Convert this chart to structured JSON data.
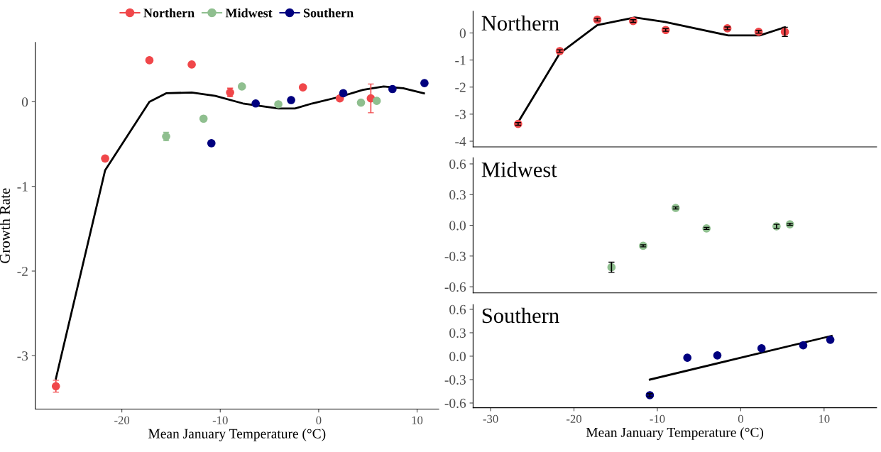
{
  "chart_data": [
    {
      "type": "scatter",
      "xlabel": "Mean January Temperature (°C)",
      "ylabel": "Growth Rate",
      "xlim": [
        -28.8,
        12.2
      ],
      "ylim": [
        -3.63,
        0.7
      ],
      "xticks": [
        -20,
        -10,
        0,
        10
      ],
      "yticks": [
        -3,
        -2,
        -1,
        0
      ],
      "legend": "top",
      "grid": false,
      "marker": "circle",
      "series": [
        {
          "name": "Northern",
          "color": "#f0474a",
          "x": [
            -26.7,
            -21.7,
            -17.2,
            -12.9,
            -9.0,
            -1.6,
            2.15,
            5.3
          ],
          "values": [
            -3.36,
            -0.67,
            0.49,
            0.44,
            0.11,
            0.17,
            0.04,
            0.04
          ],
          "errors": [
            0.07,
            0.03,
            null,
            null,
            0.05,
            null,
            null,
            0.17
          ]
        },
        {
          "name": "Midwest",
          "color": "#8fbf8f",
          "x": [
            -15.5,
            -11.7,
            -7.8,
            -4.1,
            4.3,
            5.9
          ],
          "values": [
            -0.41,
            -0.2,
            0.18,
            -0.03,
            -0.01,
            0.01
          ],
          "errors": [
            0.05,
            null,
            null,
            null,
            null,
            null
          ]
        },
        {
          "name": "Southern",
          "color": "#00007f",
          "x": [
            -10.9,
            -6.4,
            -2.8,
            2.5,
            7.5,
            10.75
          ],
          "values": [
            -0.49,
            -0.02,
            0.02,
            0.1,
            0.15,
            0.22
          ],
          "errors": [
            0.03,
            null,
            null,
            0.03,
            null,
            null
          ]
        },
        {
          "type": "line",
          "marker": "none",
          "color": "#000000",
          "x": [
            -26.7,
            -21.7,
            -17.2,
            -15.5,
            -12.9,
            -10.5,
            -7.7,
            -4.1,
            -2.4,
            -0.65,
            2.2,
            4.5,
            6.6,
            8.6,
            10.7
          ],
          "values": [
            -3.27,
            -0.81,
            0.0,
            0.1,
            0.11,
            0.07,
            -0.02,
            -0.08,
            -0.08,
            -0.02,
            0.06,
            0.14,
            0.18,
            0.16,
            0.1
          ]
        }
      ]
    },
    {
      "type": "scatter",
      "title": "Northern",
      "xlim": [
        -32.1,
        16.3
      ],
      "ylim": [
        -4.21,
        0.8
      ],
      "yticks": [
        -4,
        -3,
        -2,
        -1,
        0
      ],
      "tick_labels": "y",
      "grid": false,
      "marker": "circle",
      "series": [
        {
          "color": "#f0474a",
          "x": [
            -26.7,
            -21.7,
            -17.2,
            -12.9,
            -9.0,
            -1.6,
            2.15,
            5.3
          ],
          "values": [
            -3.36,
            -0.67,
            0.49,
            0.44,
            0.11,
            0.17,
            0.04,
            0.04
          ],
          "errors": [
            0.05,
            0.05,
            0.05,
            0.05,
            0.05,
            0.05,
            0.05,
            0.17
          ]
        },
        {
          "type": "line",
          "marker": "none",
          "color": "#000000",
          "x": [
            -26.7,
            -21.7,
            -17.2,
            -12.7,
            -9.1,
            -1.5,
            2.3,
            5.3
          ],
          "values": [
            -3.3,
            -0.75,
            0.29,
            0.57,
            0.41,
            -0.09,
            -0.09,
            0.21
          ]
        }
      ]
    },
    {
      "type": "scatter",
      "title": "Midwest",
      "xlim": [
        -32.1,
        16.3
      ],
      "ylim": [
        -0.66,
        0.66
      ],
      "yticks": [
        {
          "value": -0.6,
          "label": "-0.6"
        },
        {
          "value": -0.3,
          "label": "-0.3"
        },
        {
          "value": 0,
          "label": "0.0"
        },
        {
          "value": 0.3,
          "label": "0.3"
        },
        {
          "value": 0.6,
          "label": "0.6"
        }
      ],
      "tick_labels": "y",
      "grid": false,
      "marker": "circle",
      "series": [
        {
          "color": "#8fbf8f",
          "x": [
            -15.5,
            -11.7,
            -7.8,
            -4.1,
            4.3,
            5.9
          ],
          "values": [
            -0.41,
            -0.2,
            0.17,
            -0.03,
            -0.01,
            0.01
          ],
          "errors": [
            0.05,
            0.01,
            0.01,
            0.01,
            0.02,
            0.01
          ]
        }
      ]
    },
    {
      "type": "scatter",
      "title": "Southern",
      "xlabel": "Mean January Temperature (°C)",
      "xlim": [
        -32.1,
        16.3
      ],
      "ylim": [
        -0.66,
        0.66
      ],
      "xticks": [
        -30,
        -20,
        -10,
        0,
        10
      ],
      "yticks": [
        {
          "value": -0.6,
          "label": "-0.6"
        },
        {
          "value": -0.3,
          "label": "-0.3"
        },
        {
          "value": 0,
          "label": "0.0"
        },
        {
          "value": 0.3,
          "label": "0.3"
        },
        {
          "value": 0.6,
          "label": "0.6"
        }
      ],
      "grid": false,
      "marker": "circle",
      "series": [
        {
          "color": "#00007f",
          "x": [
            -10.9,
            -6.4,
            -2.8,
            2.5,
            7.5,
            10.75
          ],
          "values": [
            -0.5,
            -0.02,
            0.01,
            0.1,
            0.14,
            0.21
          ],
          "errors": [
            0.02,
            null,
            null,
            null,
            null,
            null
          ]
        },
        {
          "type": "line",
          "marker": "none",
          "color": "#000000",
          "x": [
            -10.9,
            10.9
          ],
          "values": [
            -0.3,
            0.26
          ]
        }
      ]
    }
  ]
}
